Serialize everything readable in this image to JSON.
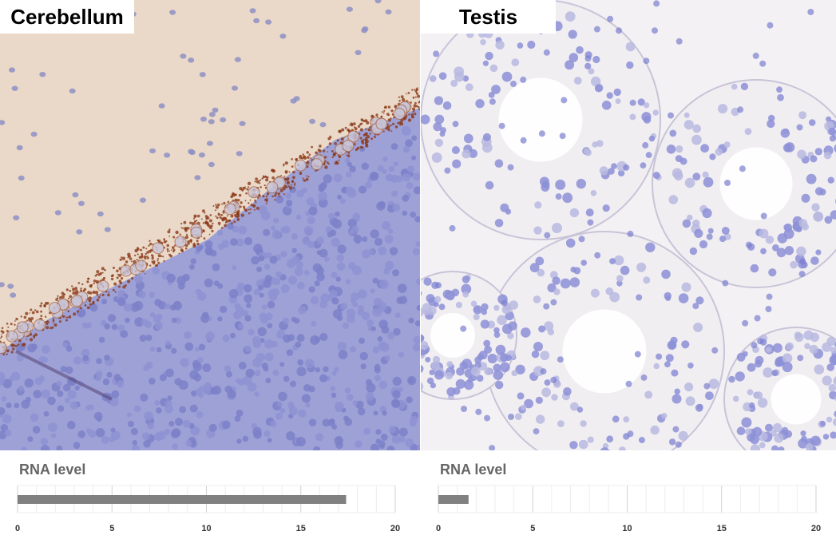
{
  "panels": [
    {
      "label": "Cerebellum",
      "tissue": "cerebellum"
    },
    {
      "label": "Testis",
      "tissue": "testis"
    }
  ],
  "rna_title": "RNA level",
  "colors": {
    "bar": "#808080",
    "grid": "#e0e0e0",
    "molecular_layer": "#ead9c8",
    "granular_layer": "#8a8ed0",
    "purkinje_stain": "#8b3a1a",
    "testis_bg": "#f4f1f4",
    "testis_nuclei": "#8a8cd6"
  },
  "chart_data": [
    {
      "type": "bar",
      "categories": [
        "Cerebellum"
      ],
      "values": [
        17.4
      ],
      "title": "RNA level",
      "xlim": [
        0,
        20
      ],
      "xticks": [
        0,
        5,
        10,
        15,
        20
      ],
      "grid": true
    },
    {
      "type": "bar",
      "categories": [
        "Testis"
      ],
      "values": [
        1.6
      ],
      "title": "RNA level",
      "xlim": [
        0,
        20
      ],
      "xticks": [
        0,
        5,
        10,
        15,
        20
      ],
      "grid": true
    }
  ]
}
